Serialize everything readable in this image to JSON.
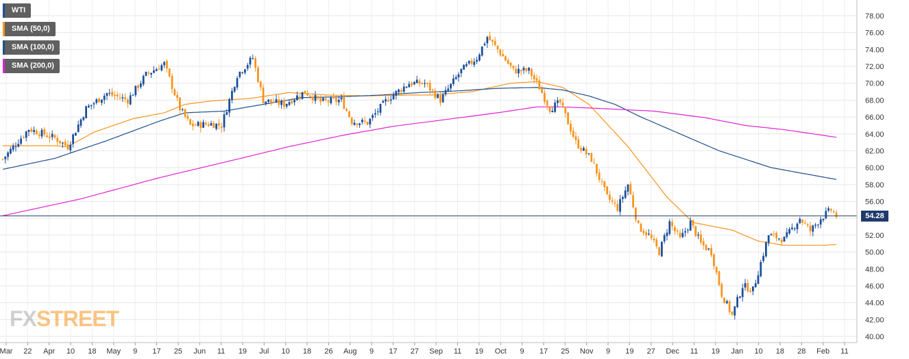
{
  "chart_data": {
    "type": "candlestick",
    "title": "WTI",
    "ylim": [
      40,
      79
    ],
    "ylabel": "",
    "grid": true,
    "legend_position": "top-left",
    "y_ticks": [
      40,
      42,
      44,
      46,
      48,
      50,
      52,
      54,
      56,
      58,
      60,
      62,
      64,
      66,
      68,
      70,
      72,
      74,
      76,
      78
    ],
    "y_tick_labels": [
      "40.00",
      "42.00",
      "44.00",
      "46.00",
      "48.00",
      "50.00",
      "52.00",
      "54.00",
      "56.00",
      "58.00",
      "60.00",
      "62.00",
      "64.00",
      "66.00",
      "68.00",
      "70.00",
      "72.00",
      "74.00",
      "76.00",
      "78.00"
    ],
    "x_tick_labels": [
      "Mar",
      "22",
      "Apr",
      "10",
      "18",
      "May",
      "9",
      "17",
      "25",
      "Jun",
      "11",
      "19",
      "Jul",
      "10",
      "18",
      "26",
      "Aug",
      "9",
      "17",
      "27",
      "Sep",
      "11",
      "19",
      "Oct",
      "9",
      "17",
      "25",
      "Nov",
      "9",
      "19",
      "27",
      "Dec",
      "11",
      "19",
      "Jan",
      "10",
      "18",
      "28",
      "Feb",
      "11"
    ],
    "current_price": 54.28,
    "current_price_label": "54.28",
    "colors": {
      "up": "#1c4f9c",
      "down": "#f7941d",
      "sma50": "#f7941d",
      "sma100": "#1f4e8c",
      "sma200": "#e020d0"
    },
    "series": [
      {
        "name": "WTI",
        "type": "candlestick",
        "color": "#1c4f9c",
        "anchors_close": [
          [
            0,
            61.0
          ],
          [
            10,
            64.6
          ],
          [
            20,
            63.5
          ],
          [
            25,
            62.5
          ],
          [
            32,
            67.0
          ],
          [
            40,
            68.8
          ],
          [
            48,
            68.0
          ],
          [
            55,
            71.0
          ],
          [
            62,
            72.3
          ],
          [
            68,
            67.0
          ],
          [
            72,
            65.0
          ],
          [
            80,
            65.2
          ],
          [
            84,
            65.0
          ],
          [
            90,
            71.0
          ],
          [
            96,
            73.0
          ],
          [
            100,
            68.0
          ],
          [
            108,
            67.5
          ],
          [
            116,
            69.0
          ],
          [
            122,
            67.8
          ],
          [
            130,
            68.0
          ],
          [
            134,
            65.5
          ],
          [
            140,
            65.3
          ],
          [
            148,
            68.2
          ],
          [
            156,
            70.0
          ],
          [
            162,
            70.0
          ],
          [
            168,
            68.0
          ],
          [
            176,
            71.5
          ],
          [
            182,
            73.0
          ],
          [
            186,
            75.5
          ],
          [
            190,
            74.0
          ],
          [
            196,
            71.5
          ],
          [
            202,
            71.5
          ],
          [
            206,
            69.5
          ],
          [
            210,
            67.0
          ],
          [
            214,
            67.7
          ],
          [
            220,
            63.0
          ],
          [
            226,
            61.0
          ],
          [
            232,
            56.5
          ],
          [
            236,
            55.2
          ],
          [
            240,
            58.0
          ],
          [
            244,
            53.0
          ],
          [
            248,
            52.0
          ],
          [
            252,
            50.0
          ],
          [
            256,
            53.5
          ],
          [
            260,
            51.5
          ],
          [
            264,
            53.5
          ],
          [
            268,
            51.0
          ],
          [
            272,
            50.0
          ],
          [
            276,
            45.0
          ],
          [
            280,
            42.5
          ],
          [
            284,
            46.0
          ],
          [
            288,
            45.5
          ],
          [
            294,
            52.0
          ],
          [
            300,
            51.5
          ],
          [
            306,
            54.0
          ],
          [
            310,
            52.5
          ],
          [
            314,
            54.0
          ],
          [
            318,
            55.0
          ],
          [
            320,
            54.28
          ]
        ]
      },
      {
        "name": "SMA (50,0)",
        "type": "line",
        "color": "#f7941d",
        "anchors": [
          [
            0,
            62.6
          ],
          [
            20,
            62.6
          ],
          [
            25,
            62.5
          ],
          [
            35,
            64.2
          ],
          [
            50,
            65.8
          ],
          [
            62,
            66.5
          ],
          [
            70,
            67.5
          ],
          [
            80,
            67.9
          ],
          [
            95,
            68.2
          ],
          [
            110,
            68.9
          ],
          [
            125,
            68.6
          ],
          [
            140,
            68.5
          ],
          [
            155,
            68.6
          ],
          [
            165,
            68.6
          ],
          [
            180,
            69.0
          ],
          [
            195,
            70.0
          ],
          [
            205,
            70.2
          ],
          [
            215,
            69.5
          ],
          [
            225,
            67.5
          ],
          [
            240,
            62.5
          ],
          [
            255,
            56.5
          ],
          [
            265,
            53.5
          ],
          [
            280,
            52.6
          ],
          [
            290,
            51.3
          ],
          [
            300,
            50.8
          ],
          [
            315,
            50.8
          ],
          [
            320,
            50.9
          ]
        ]
      },
      {
        "name": "SMA (100,0)",
        "type": "line",
        "color": "#1f4e8c",
        "anchors": [
          [
            0,
            59.8
          ],
          [
            20,
            61.1
          ],
          [
            40,
            63.2
          ],
          [
            60,
            65.5
          ],
          [
            70,
            66.5
          ],
          [
            85,
            66.7
          ],
          [
            100,
            67.5
          ],
          [
            115,
            68.3
          ],
          [
            130,
            68.4
          ],
          [
            145,
            68.6
          ],
          [
            160,
            68.9
          ],
          [
            175,
            69.1
          ],
          [
            190,
            69.4
          ],
          [
            205,
            69.5
          ],
          [
            215,
            69.2
          ],
          [
            225,
            68.5
          ],
          [
            235,
            67.5
          ],
          [
            245,
            66.0
          ],
          [
            260,
            64.0
          ],
          [
            275,
            62.0
          ],
          [
            295,
            60.0
          ],
          [
            320,
            58.6
          ]
        ]
      },
      {
        "name": "SMA (200,0)",
        "type": "line",
        "color": "#e020d0",
        "anchors": [
          [
            0,
            54.3
          ],
          [
            30,
            56.3
          ],
          [
            60,
            58.8
          ],
          [
            90,
            61.0
          ],
          [
            110,
            62.5
          ],
          [
            130,
            63.8
          ],
          [
            150,
            64.9
          ],
          [
            170,
            65.7
          ],
          [
            190,
            66.5
          ],
          [
            205,
            67.2
          ],
          [
            215,
            67.2
          ],
          [
            230,
            67.0
          ],
          [
            250,
            66.7
          ],
          [
            270,
            65.9
          ],
          [
            285,
            65.0
          ],
          [
            300,
            64.5
          ],
          [
            320,
            63.6
          ]
        ]
      }
    ]
  },
  "legend": [
    {
      "label": "WTI",
      "color": "#1c4f9c"
    },
    {
      "label": "SMA (50,0)",
      "color": "#f7941d"
    },
    {
      "label": "SMA (100,0)",
      "color": "#1f4e8c"
    },
    {
      "label": "SMA (200,0)",
      "color": "#e020d0"
    }
  ],
  "watermark": {
    "part1": "FX",
    "part2": "STREET"
  }
}
